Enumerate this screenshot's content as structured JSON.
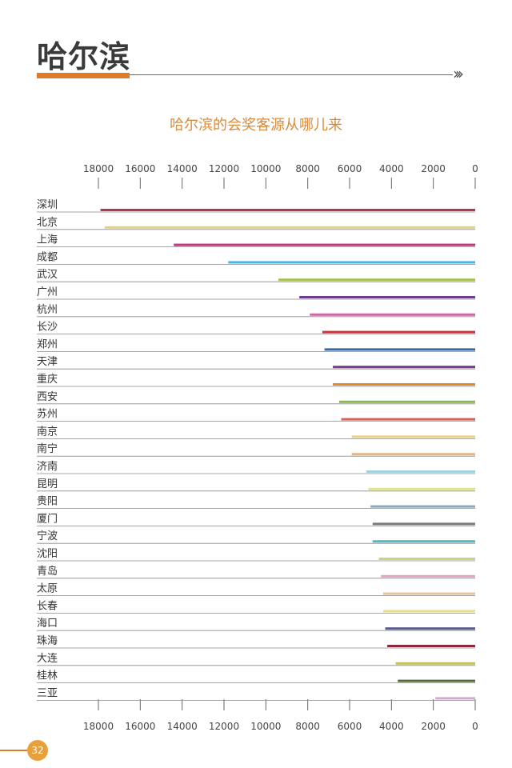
{
  "page": {
    "title": "哈尔滨",
    "chevrons": "›››",
    "page_number": "32",
    "accent_color": "#e07b2a"
  },
  "chart_data": {
    "type": "bar",
    "orientation": "horizontal",
    "x_direction": "reversed",
    "title": "哈尔滨的会奖客源从哪儿来",
    "xlabel": "",
    "ylabel": "",
    "xlim": [
      0,
      18000
    ],
    "x_ticks": [
      18000,
      16000,
      14000,
      12000,
      10000,
      8000,
      6000,
      4000,
      2000,
      0
    ],
    "axis_position": "top-and-bottom",
    "grid": false,
    "categories": [
      "深圳",
      "北京",
      "上海",
      "成都",
      "武汉",
      "广州",
      "杭州",
      "长沙",
      "郑州",
      "天津",
      "重庆",
      "西安",
      "苏州",
      "南京",
      "南宁",
      "济南",
      "昆明",
      "贵阳",
      "厦门",
      "宁波",
      "沈阳",
      "青岛",
      "太原",
      "长春",
      "海口",
      "珠海",
      "大连",
      "桂林",
      "三亚"
    ],
    "values": [
      17900,
      17700,
      14400,
      11800,
      9400,
      8400,
      7900,
      7300,
      7200,
      6800,
      6800,
      6500,
      6400,
      5900,
      5900,
      5200,
      5100,
      5000,
      4900,
      4900,
      4600,
      4500,
      4400,
      4400,
      4300,
      4200,
      3800,
      3700,
      1900
    ],
    "colors": [
      "#b03a48",
      "#e6cf7a",
      "#c8307a",
      "#4fb3e0",
      "#a8c24a",
      "#6b3f8c",
      "#c96aa5",
      "#c8343a",
      "#2e6aa8",
      "#7a3a8a",
      "#e08a2e",
      "#8db84a",
      "#d9605a",
      "#e6cf8a",
      "#e2b98e",
      "#9fd4de",
      "#e2e28a",
      "#8aa8bc",
      "#7a7a7a",
      "#4fbac6",
      "#c2d68a",
      "#e4a3c2",
      "#e8c2a0",
      "#ecdc8a",
      "#5a5a8a",
      "#8a2a3a",
      "#c2c25a",
      "#5a6a3a",
      "#d6a8d0"
    ]
  }
}
